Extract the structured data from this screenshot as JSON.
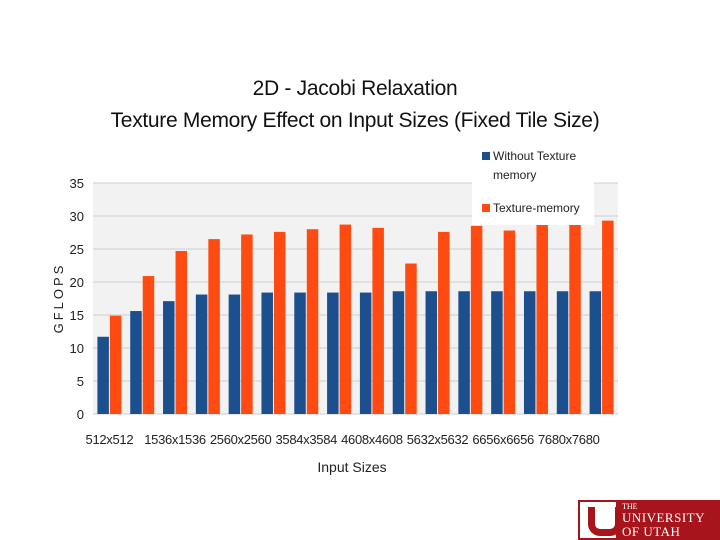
{
  "slide": {
    "title_line1": "2D - Jacobi Relaxation",
    "title_line2": "Texture Memory Effect on Input Sizes (Fixed Tile Size)"
  },
  "logo": {
    "the": "THE",
    "line1": "UNIVERSITY",
    "line2": "OF UTAH"
  },
  "colors": {
    "without_texture": "#1c4f8e",
    "texture": "#ff4b12",
    "gridline": "#cfcfcf",
    "plot_background": "#f2f2f2"
  },
  "chart_data": {
    "type": "bar",
    "title": "2D - Jacobi Relaxation Texture Memory Effect on Input Sizes (Fixed Tile Size)",
    "xlabel": "Input Sizes",
    "ylabel": "GFLOPS",
    "ylim": [
      0,
      35
    ],
    "yticks": [
      0,
      5,
      10,
      15,
      20,
      25,
      30,
      35
    ],
    "grid": true,
    "legend_position": "top-right",
    "categories": [
      "512x512",
      "",
      "1536x1536",
      "",
      "2560x2560",
      "",
      "3584x3584",
      "",
      "4608x4608",
      "",
      "5632x5632",
      "",
      "6656x6656",
      "",
      "7680x7680",
      ""
    ],
    "series": [
      {
        "name": "Without Texture memory",
        "color": "#1c4f8e",
        "values": [
          11.7,
          15.6,
          17.1,
          18.1,
          18.1,
          18.4,
          18.4,
          18.4,
          18.4,
          18.6,
          18.6,
          18.6,
          18.6,
          18.6,
          18.6,
          18.6
        ]
      },
      {
        "name": "Texture-memory",
        "color": "#ff4b12",
        "values": [
          14.9,
          20.9,
          24.7,
          26.5,
          27.2,
          27.6,
          28.0,
          28.7,
          28.2,
          22.8,
          27.6,
          28.5,
          27.8,
          28.7,
          28.7,
          29.3
        ]
      }
    ]
  }
}
